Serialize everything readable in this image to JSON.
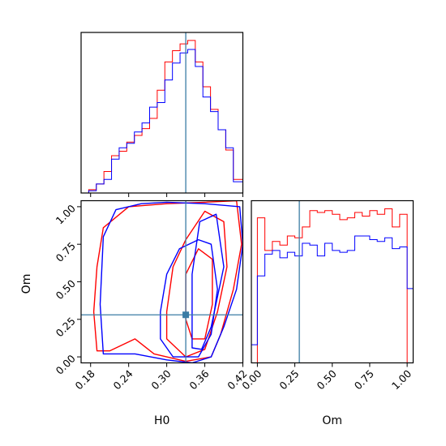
{
  "chart_data": {
    "type": "corner",
    "title": "",
    "parameters": [
      {
        "name": "H0",
        "range": [
          0.165,
          0.42
        ],
        "ticks": [
          "0.18",
          "0.24",
          "0.30",
          "0.36",
          "0.42"
        ],
        "tick_values": [
          0.18,
          0.24,
          0.3,
          0.36,
          0.42
        ],
        "truth": 0.33
      },
      {
        "name": "Om",
        "range": [
          -0.04,
          1.04
        ],
        "ticks": [
          "0.00",
          "0.25",
          "0.50",
          "0.75",
          "1.00"
        ],
        "tick_values": [
          0.0,
          0.25,
          0.5,
          0.75,
          1.0
        ],
        "truth": 0.28
      }
    ],
    "colors": {
      "series_a": "#ff0000",
      "series_b": "#0000ff",
      "truth": "#3a7ca5",
      "frame": "#000000"
    },
    "grid": false,
    "legend": "none",
    "series": [
      {
        "color": "#ff0000",
        "hist_H0": {
          "edges": [
            0.165,
            0.177,
            0.189,
            0.201,
            0.213,
            0.225,
            0.237,
            0.249,
            0.261,
            0.273,
            0.285,
            0.297,
            0.309,
            0.321,
            0.333,
            0.345,
            0.357,
            0.369,
            0.381,
            0.393,
            0.405,
            0.42
          ],
          "counts": [
            0,
            3,
            8,
            19,
            33,
            37,
            45,
            51,
            57,
            66,
            91,
            116,
            126,
            132,
            135,
            116,
            94,
            74,
            56,
            38,
            12
          ]
        },
        "hist_Om": {
          "edges": [
            -0.04,
            0.0,
            0.05,
            0.1,
            0.15,
            0.2,
            0.25,
            0.3,
            0.35,
            0.4,
            0.45,
            0.5,
            0.55,
            0.6,
            0.65,
            0.7,
            0.75,
            0.8,
            0.85,
            0.9,
            0.95,
            1.0,
            1.04
          ],
          "counts": [
            0,
            80,
            62,
            67,
            65,
            70,
            69,
            75,
            84,
            83,
            84,
            82,
            79,
            80,
            83,
            81,
            84,
            82,
            85,
            75,
            82,
            0
          ]
        },
        "contours": [
          {
            "level": "outer",
            "points": [
              [
                0.19,
                0.04
              ],
              [
                0.185,
                0.3
              ],
              [
                0.19,
                0.6
              ],
              [
                0.2,
                0.86
              ],
              [
                0.24,
                1.0
              ],
              [
                0.3,
                1.02
              ],
              [
                0.36,
                1.03
              ],
              [
                0.41,
                1.04
              ],
              [
                0.418,
                0.75
              ],
              [
                0.405,
                0.45
              ],
              [
                0.385,
                0.15
              ],
              [
                0.37,
                0.0
              ],
              [
                0.33,
                -0.03
              ],
              [
                0.28,
                0.02
              ],
              [
                0.25,
                0.12
              ],
              [
                0.21,
                0.04
              ]
            ]
          },
          {
            "level": "middle",
            "points": [
              [
                0.3,
                0.3
              ],
              [
                0.31,
                0.6
              ],
              [
                0.33,
                0.78
              ],
              [
                0.36,
                0.97
              ],
              [
                0.39,
                0.9
              ],
              [
                0.395,
                0.6
              ],
              [
                0.38,
                0.3
              ],
              [
                0.36,
                0.05
              ],
              [
                0.33,
                0.0
              ],
              [
                0.3,
                0.12
              ]
            ]
          },
          {
            "level": "inner",
            "points": [
              [
                0.33,
                0.25
              ],
              [
                0.33,
                0.55
              ],
              [
                0.35,
                0.72
              ],
              [
                0.372,
                0.65
              ],
              [
                0.372,
                0.35
              ],
              [
                0.36,
                0.12
              ],
              [
                0.34,
                0.12
              ]
            ]
          }
        ]
      },
      {
        "color": "#0000ff",
        "hist_H0": {
          "edges": [
            0.165,
            0.177,
            0.189,
            0.201,
            0.213,
            0.225,
            0.237,
            0.249,
            0.261,
            0.273,
            0.285,
            0.297,
            0.309,
            0.321,
            0.333,
            0.345,
            0.357,
            0.369,
            0.381,
            0.393,
            0.405,
            0.42
          ],
          "counts": [
            0,
            2,
            8,
            12,
            30,
            40,
            44,
            54,
            62,
            76,
            80,
            100,
            115,
            124,
            127,
            112,
            85,
            72,
            56,
            40,
            10
          ]
        },
        "hist_Om": {
          "edges": [
            -0.04,
            0.0,
            0.05,
            0.1,
            0.15,
            0.2,
            0.25,
            0.3,
            0.35,
            0.4,
            0.45,
            0.5,
            0.55,
            0.6,
            0.65,
            0.7,
            0.75,
            0.8,
            0.85,
            0.9,
            0.95,
            1.0,
            1.04
          ],
          "counts": [
            10,
            48,
            60,
            62,
            58,
            61,
            59,
            66,
            65,
            59,
            66,
            62,
            61,
            62,
            70,
            70,
            68,
            67,
            69,
            63,
            64,
            41
          ]
        },
        "contours": [
          {
            "level": "outer",
            "points": [
              [
                0.2,
                0.02
              ],
              [
                0.195,
                0.35
              ],
              [
                0.2,
                0.8
              ],
              [
                0.22,
                0.98
              ],
              [
                0.26,
                1.02
              ],
              [
                0.3,
                1.03
              ],
              [
                0.36,
                1.02
              ],
              [
                0.415,
                1.0
              ],
              [
                0.42,
                0.75
              ],
              [
                0.41,
                0.45
              ],
              [
                0.39,
                0.2
              ],
              [
                0.37,
                0.0
              ],
              [
                0.34,
                -0.04
              ],
              [
                0.3,
                -0.02
              ],
              [
                0.25,
                0.02
              ]
            ]
          },
          {
            "level": "middle",
            "points": [
              [
                0.29,
                0.3
              ],
              [
                0.3,
                0.55
              ],
              [
                0.32,
                0.72
              ],
              [
                0.35,
                0.78
              ],
              [
                0.37,
                0.75
              ],
              [
                0.38,
                0.45
              ],
              [
                0.37,
                0.15
              ],
              [
                0.35,
                0.0
              ],
              [
                0.31,
                0.0
              ],
              [
                0.29,
                0.12
              ]
            ]
          },
          {
            "level": "inner",
            "points": [
              [
                0.34,
                0.06
              ],
              [
                0.34,
                0.55
              ],
              [
                0.352,
                0.9
              ],
              [
                0.378,
                0.95
              ],
              [
                0.39,
                0.6
              ],
              [
                0.37,
                0.2
              ],
              [
                0.355,
                0.05
              ]
            ]
          }
        ]
      }
    ],
    "truth_marker": {
      "H0": 0.33,
      "Om": 0.28
    }
  }
}
